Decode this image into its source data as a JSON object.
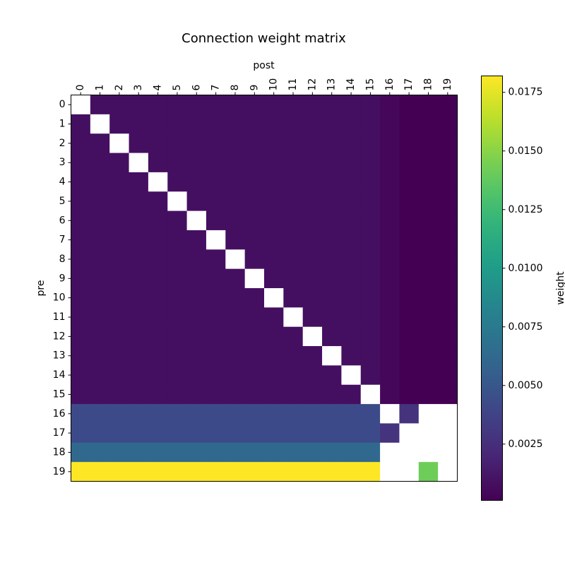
{
  "chart_data": {
    "type": "heatmap",
    "title": "Connection weight matrix",
    "xlabel": "post",
    "ylabel": "pre",
    "x_categories": [
      "0",
      "1",
      "2",
      "3",
      "4",
      "5",
      "6",
      "7",
      "8",
      "9",
      "10",
      "11",
      "12",
      "13",
      "14",
      "15",
      "16",
      "17",
      "18",
      "19"
    ],
    "y_categories": [
      "0",
      "1",
      "2",
      "3",
      "4",
      "5",
      "6",
      "7",
      "8",
      "9",
      "10",
      "11",
      "12",
      "13",
      "14",
      "15",
      "16",
      "17",
      "18",
      "19"
    ],
    "values": [
      [
        null,
        0.0008,
        0.0008,
        0.0008,
        0.0008,
        0.0008,
        0.0008,
        0.0008,
        0.0008,
        0.0008,
        0.0008,
        0.0008,
        0.0008,
        0.0008,
        0.0008,
        0.0008,
        0.0004,
        0.0001,
        0.0001,
        0.0001
      ],
      [
        0.0008,
        null,
        0.0008,
        0.0008,
        0.0008,
        0.0008,
        0.0008,
        0.0008,
        0.0008,
        0.0008,
        0.0008,
        0.0008,
        0.0008,
        0.0008,
        0.0008,
        0.0008,
        0.0004,
        0.0001,
        0.0001,
        0.0001
      ],
      [
        0.0008,
        0.0008,
        null,
        0.0008,
        0.0008,
        0.0008,
        0.0008,
        0.0008,
        0.0008,
        0.0008,
        0.0008,
        0.0008,
        0.0008,
        0.0008,
        0.0008,
        0.0008,
        0.0004,
        0.0001,
        0.0001,
        0.0001
      ],
      [
        0.0008,
        0.0008,
        0.0008,
        null,
        0.0008,
        0.0008,
        0.0008,
        0.0008,
        0.0008,
        0.0008,
        0.0008,
        0.0008,
        0.0008,
        0.0008,
        0.0008,
        0.0008,
        0.0004,
        0.0001,
        0.0001,
        0.0001
      ],
      [
        0.0008,
        0.0008,
        0.0008,
        0.0008,
        null,
        0.0008,
        0.0008,
        0.0008,
        0.0008,
        0.0008,
        0.0008,
        0.0008,
        0.0008,
        0.0008,
        0.0008,
        0.0008,
        0.0004,
        0.0001,
        0.0001,
        0.0001
      ],
      [
        0.0008,
        0.0008,
        0.0008,
        0.0008,
        0.0008,
        null,
        0.0008,
        0.0008,
        0.0008,
        0.0008,
        0.0008,
        0.0008,
        0.0008,
        0.0008,
        0.0008,
        0.0008,
        0.0004,
        0.0001,
        0.0001,
        0.0001
      ],
      [
        0.0008,
        0.0008,
        0.0008,
        0.0008,
        0.0008,
        0.0008,
        null,
        0.0008,
        0.0008,
        0.0008,
        0.0008,
        0.0008,
        0.0008,
        0.0008,
        0.0008,
        0.0008,
        0.0004,
        0.0001,
        0.0001,
        0.0001
      ],
      [
        0.0008,
        0.0008,
        0.0008,
        0.0008,
        0.0008,
        0.0008,
        0.0008,
        null,
        0.0008,
        0.0008,
        0.0008,
        0.0008,
        0.0008,
        0.0008,
        0.0008,
        0.0008,
        0.0004,
        0.0001,
        0.0001,
        0.0001
      ],
      [
        0.0008,
        0.0008,
        0.0008,
        0.0008,
        0.0008,
        0.0008,
        0.0008,
        0.0008,
        null,
        0.0008,
        0.0008,
        0.0008,
        0.0008,
        0.0008,
        0.0008,
        0.0008,
        0.0004,
        0.0001,
        0.0001,
        0.0001
      ],
      [
        0.0008,
        0.0008,
        0.0008,
        0.0008,
        0.0008,
        0.0008,
        0.0008,
        0.0008,
        0.0008,
        null,
        0.0008,
        0.0008,
        0.0008,
        0.0008,
        0.0008,
        0.0008,
        0.0004,
        0.0001,
        0.0001,
        0.0001
      ],
      [
        0.0008,
        0.0008,
        0.0008,
        0.0008,
        0.0008,
        0.0008,
        0.0008,
        0.0008,
        0.0008,
        0.0008,
        null,
        0.0008,
        0.0008,
        0.0008,
        0.0008,
        0.0008,
        0.0004,
        0.0001,
        0.0001,
        0.0001
      ],
      [
        0.0008,
        0.0008,
        0.0008,
        0.0008,
        0.0008,
        0.0008,
        0.0008,
        0.0008,
        0.0008,
        0.0008,
        0.0008,
        null,
        0.0008,
        0.0008,
        0.0008,
        0.0008,
        0.0004,
        0.0001,
        0.0001,
        0.0001
      ],
      [
        0.0008,
        0.0008,
        0.0008,
        0.0008,
        0.0008,
        0.0008,
        0.0008,
        0.0008,
        0.0008,
        0.0008,
        0.0008,
        0.0008,
        null,
        0.0008,
        0.0008,
        0.0008,
        0.0004,
        0.0001,
        0.0001,
        0.0001
      ],
      [
        0.0008,
        0.0008,
        0.0008,
        0.0008,
        0.0008,
        0.0008,
        0.0008,
        0.0008,
        0.0008,
        0.0008,
        0.0008,
        0.0008,
        0.0008,
        null,
        0.0008,
        0.0008,
        0.0004,
        0.0001,
        0.0001,
        0.0001
      ],
      [
        0.0008,
        0.0008,
        0.0008,
        0.0008,
        0.0008,
        0.0008,
        0.0008,
        0.0008,
        0.0008,
        0.0008,
        0.0008,
        0.0008,
        0.0008,
        0.0008,
        null,
        0.0008,
        0.0004,
        0.0001,
        0.0001,
        0.0001
      ],
      [
        0.0008,
        0.0008,
        0.0008,
        0.0008,
        0.0008,
        0.0008,
        0.0008,
        0.0008,
        0.0008,
        0.0008,
        0.0008,
        0.0008,
        0.0008,
        0.0008,
        0.0008,
        null,
        0.0004,
        0.0001,
        0.0001,
        0.0001
      ],
      [
        0.0042,
        0.0042,
        0.0042,
        0.0042,
        0.0042,
        0.0042,
        0.0042,
        0.0042,
        0.0042,
        0.0042,
        0.0042,
        0.0042,
        0.0042,
        0.0042,
        0.0042,
        0.0042,
        null,
        0.0028,
        null,
        null
      ],
      [
        0.0042,
        0.0042,
        0.0042,
        0.0042,
        0.0042,
        0.0042,
        0.0042,
        0.0042,
        0.0042,
        0.0042,
        0.0042,
        0.0042,
        0.0042,
        0.0042,
        0.0042,
        0.0042,
        0.0028,
        null,
        null,
        null
      ],
      [
        0.0062,
        0.0062,
        0.0062,
        0.0062,
        0.0062,
        0.0062,
        0.0062,
        0.0062,
        0.0062,
        0.0062,
        0.0062,
        0.0062,
        0.0062,
        0.0062,
        0.0062,
        0.0062,
        null,
        null,
        null,
        null
      ],
      [
        0.0182,
        0.0182,
        0.0182,
        0.0182,
        0.0182,
        0.0182,
        0.0182,
        0.0182,
        0.0182,
        0.0182,
        0.0182,
        0.0182,
        0.0182,
        0.0182,
        0.0182,
        0.0182,
        null,
        null,
        0.0142,
        null
      ]
    ],
    "colorbar": {
      "label": "weight",
      "colormap": "viridis",
      "range": [
        0.0001,
        0.0182
      ],
      "ticks": [
        0.0025,
        0.005,
        0.0075,
        0.01,
        0.0125,
        0.015,
        0.0175
      ],
      "tick_labels": [
        "0.0025",
        "0.0050",
        "0.0075",
        "0.0100",
        "0.0125",
        "0.0150",
        "0.0175"
      ]
    },
    "missing_color": "#ffffff",
    "x_ticks_position": "top",
    "x_tick_rotation_deg": 90,
    "grid": false
  }
}
